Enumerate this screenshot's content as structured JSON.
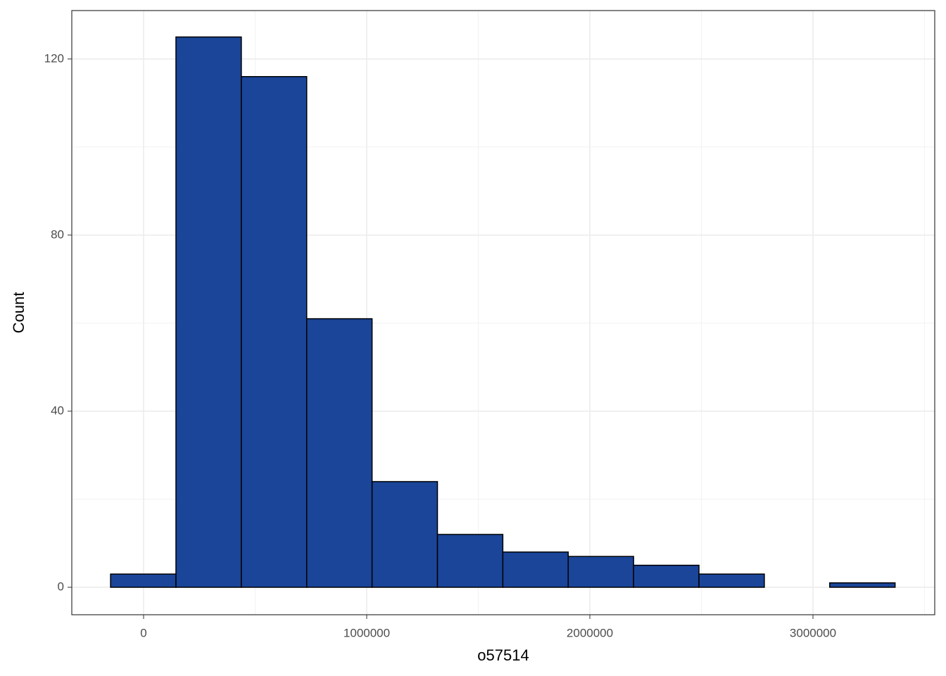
{
  "chart_data": {
    "type": "histogram",
    "x_label": "o57514",
    "y_label": "Count",
    "bins": [
      -148000,
      145000,
      438000,
      731000,
      1024000,
      1317000,
      1610000,
      1903000,
      2196000,
      2489000,
      2782000,
      3075000,
      3368000
    ],
    "counts": [
      3,
      125,
      116,
      61,
      24,
      12,
      8,
      7,
      5,
      3,
      0,
      1
    ],
    "color": "#1a4599",
    "edge_color": "#000000",
    "xlim": [
      -321800,
      3545700
    ],
    "ylim": [
      -6.24,
      131
    ],
    "xticks": [
      0,
      1000000,
      2000000,
      3000000
    ],
    "yticks": [
      0,
      40,
      80,
      120
    ],
    "grid": true,
    "minor_grid": true
  }
}
